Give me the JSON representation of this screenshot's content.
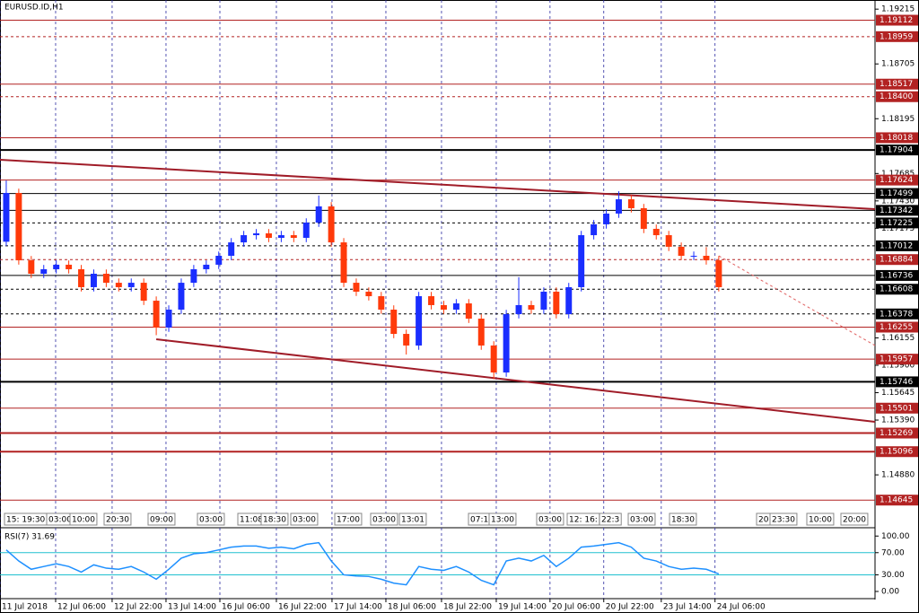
{
  "chart_data": [
    {
      "type": "candlestick",
      "title": "EURUSD.ID,H1",
      "bull_color": "#1a2eff",
      "bear_color": "#ff3a0a",
      "open": [
        1.1705,
        1.17504,
        1.16877,
        1.16752,
        1.16794,
        1.16836,
        1.16794,
        1.16627,
        1.16752,
        1.16668,
        1.16627,
        1.16668,
        1.16501,
        1.16251,
        1.16418,
        1.16668,
        1.16794,
        1.16836,
        1.16919,
        1.17044,
        1.17111,
        1.17128,
        1.17086,
        1.17111,
        1.17086,
        1.17228,
        1.17379,
        1.17044,
        1.16668,
        1.16585,
        1.16543,
        1.16418,
        1.16192,
        1.16084,
        1.16543,
        1.1646,
        1.16418,
        1.16476,
        1.16334,
        1.16084,
        1.15833,
        1.16376,
        1.1646,
        1.16418,
        1.16585,
        1.16376,
        1.16627,
        1.17111,
        1.17212,
        1.17312,
        1.17445,
        1.17362,
        1.1717,
        1.17111,
        1.17003,
        1.16919,
        1.16919,
        1.16877
      ],
      "high": [
        1.1762,
        1.17544,
        1.16917,
        1.16834,
        1.16876,
        1.16876,
        1.16834,
        1.16792,
        1.16792,
        1.16708,
        1.16708,
        1.16708,
        1.16541,
        1.16458,
        1.16708,
        1.16834,
        1.16876,
        1.16959,
        1.17084,
        1.17151,
        1.17168,
        1.17168,
        1.17151,
        1.17151,
        1.17268,
        1.1748,
        1.17419,
        1.17084,
        1.16708,
        1.16625,
        1.16583,
        1.16458,
        1.16232,
        1.16583,
        1.16583,
        1.165,
        1.16516,
        1.16516,
        1.16374,
        1.16124,
        1.16416,
        1.1672,
        1.165,
        1.16625,
        1.16625,
        1.16667,
        1.17151,
        1.17252,
        1.17352,
        1.1752,
        1.17485,
        1.17402,
        1.1721,
        1.17151,
        1.17043,
        1.16959,
        1.17,
        1.16917
      ],
      "low": [
        1.1701,
        1.16837,
        1.16712,
        1.16712,
        1.16754,
        1.16754,
        1.16587,
        1.16587,
        1.16628,
        1.16587,
        1.16587,
        1.16461,
        1.1618,
        1.16211,
        1.16378,
        1.16628,
        1.16754,
        1.16796,
        1.16879,
        1.17004,
        1.17071,
        1.17046,
        1.17046,
        1.17046,
        1.17046,
        1.17188,
        1.17004,
        1.16628,
        1.16545,
        1.16503,
        1.16378,
        1.16152,
        1.16,
        1.16044,
        1.1642,
        1.16378,
        1.16378,
        1.16294,
        1.16044,
        1.1577,
        1.15793,
        1.16336,
        1.16378,
        1.16378,
        1.16336,
        1.16336,
        1.16587,
        1.17071,
        1.17172,
        1.17272,
        1.17322,
        1.1713,
        1.17071,
        1.16963,
        1.16879,
        1.16879,
        1.16837,
        1.16587
      ],
      "close": [
        1.17504,
        1.16877,
        1.16752,
        1.16794,
        1.16836,
        1.16794,
        1.16627,
        1.16752,
        1.16668,
        1.16627,
        1.16668,
        1.16501,
        1.16251,
        1.16418,
        1.16668,
        1.16794,
        1.16836,
        1.16919,
        1.17044,
        1.17111,
        1.17128,
        1.17086,
        1.17111,
        1.17086,
        1.17228,
        1.17379,
        1.17044,
        1.16668,
        1.16585,
        1.16543,
        1.16418,
        1.16192,
        1.16084,
        1.16543,
        1.1646,
        1.16418,
        1.16476,
        1.16334,
        1.16084,
        1.15833,
        1.16376,
        1.1646,
        1.16418,
        1.16585,
        1.16376,
        1.16627,
        1.17111,
        1.17212,
        1.17312,
        1.17445,
        1.17362,
        1.1717,
        1.17111,
        1.17003,
        1.16919,
        1.16919,
        1.16877,
        1.16627
      ],
      "xlim": [
        0,
        70
      ],
      "xticks": [
        {
          "value": 0,
          "label": "11 Jul 2018"
        },
        {
          "value": 4.45,
          "label": "12 Jul 06:00"
        },
        {
          "value": 8.97,
          "label": "12 Jul 22:00"
        },
        {
          "value": 13.28,
          "label": "13 Jul 14:00"
        },
        {
          "value": 17.59,
          "label": "16 Jul 06:00"
        },
        {
          "value": 22.11,
          "label": "16 Jul 22:00"
        },
        {
          "value": 26.56,
          "label": "17 Jul 14:00"
        },
        {
          "value": 30.87,
          "label": "18 Jul 06:00"
        },
        {
          "value": 35.32,
          "label": "18 Jul 22:00"
        },
        {
          "value": 39.7,
          "label": "19 Jul 14:00"
        },
        {
          "value": 44,
          "label": "20 Jul 06:00"
        },
        {
          "value": 48.3,
          "label": "20 Jul 22:00"
        },
        {
          "value": 52.9,
          "label": "23 Jul 14:00"
        },
        {
          "value": 57.2,
          "label": "24 Jul 06:00"
        }
      ],
      "ylim": [
        1.1458,
        1.193
      ],
      "yticks": [
        1.19215,
        1.18705,
        1.18195,
        1.17685,
        {
          "value": 1.1743,
          "label": "1.17430"
        },
        1.17175,
        1.16155,
        {
          "value": 1.159,
          "label": "1.15900"
        },
        1.15645,
        {
          "value": 1.1539,
          "label": "1.15390"
        },
        {
          "value": 1.1488,
          "label": "1.14880"
        }
      ],
      "levels": [
        {
          "value": 1.19112,
          "label": "1.19112",
          "color": "#b22222",
          "style": "solid"
        },
        {
          "value": 1.18959,
          "label": "1.18959",
          "color": "#b22222",
          "style": "dashed"
        },
        {
          "value": 1.18517,
          "label": "1.18517",
          "color": "#b22222",
          "style": "solid"
        },
        {
          "value": 1.184,
          "label": "1.18400",
          "color": "#b22222",
          "style": "dashed"
        },
        {
          "value": 1.18018,
          "label": "1.18018",
          "color": "#b22222",
          "style": "solid"
        },
        {
          "value": 1.17904,
          "label": "1.17904",
          "color": "#000000",
          "style": "thick"
        },
        {
          "value": 1.17624,
          "label": "1.17624",
          "color": "#b22222",
          "style": "solid"
        },
        {
          "value": 1.17499,
          "label": "1.17499",
          "color": "#000000",
          "style": "solid"
        },
        {
          "value": 1.17342,
          "label": "1.17342",
          "color": "#000000",
          "style": "solid"
        },
        {
          "value": 1.17225,
          "label": "1.17225",
          "color": "#000000",
          "style": "dashed"
        },
        {
          "value": 1.17012,
          "label": "1.17012",
          "color": "#000000",
          "style": "dashed"
        },
        {
          "value": 1.16884,
          "label": "1.16884",
          "color": "#b22222",
          "style": "dashed"
        },
        {
          "value": 1.16736,
          "label": "1.16736",
          "color": "#000000",
          "style": "solid"
        },
        {
          "value": 1.16608,
          "label": "1.16608",
          "color": "#000000",
          "style": "dashed"
        },
        {
          "value": 1.16378,
          "label": "1.16378",
          "color": "#000000",
          "style": "dashed"
        },
        {
          "value": 1.16255,
          "label": "1.16255",
          "color": "#b22222",
          "style": "solid"
        },
        {
          "value": 1.15957,
          "label": "1.15957",
          "color": "#b22222",
          "style": "solid"
        },
        {
          "value": 1.15746,
          "label": "1.15746",
          "color": "#000000",
          "style": "thick"
        },
        {
          "value": 1.15501,
          "label": "1.15501",
          "color": "#b22222",
          "style": "solid"
        },
        {
          "value": 1.15269,
          "label": "1.15269",
          "color": "#b22222",
          "style": "thick"
        },
        {
          "value": 1.15096,
          "label": "1.15096",
          "color": "#b22222",
          "style": "thick"
        },
        {
          "value": 1.14645,
          "label": "1.14645",
          "color": "#b22222",
          "style": "solid"
        }
      ],
      "trendlines": [
        {
          "start": [
            0,
            1.17813
          ],
          "end": [
            70,
            1.17354
          ],
          "color": "#a01c28",
          "style": "thick"
        },
        {
          "start": [
            12.5,
            1.16142
          ],
          "end": [
            70,
            1.15374
          ],
          "color": "#a01c28",
          "style": "thick"
        },
        {
          "start": [
            57.5,
            1.16919
          ],
          "end": [
            70,
            1.16084
          ],
          "color": "#e06060",
          "style": "dashed"
        }
      ],
      "time_strip": [
        "15: 19:30",
        "03:00",
        "10:00",
        "20:30",
        "09:00",
        "03:00",
        "11:08",
        "18:30",
        "03:00",
        "17:00",
        "03:00",
        "13:01",
        "07:1",
        "13:00",
        "03:00",
        "12: 16:",
        "22:3",
        "03:00",
        "18:30",
        "20",
        "23:30",
        "10:00",
        "20:00"
      ]
    },
    {
      "type": "line",
      "title": "RSI(7) 31.69",
      "color": "#1e90ff",
      "level_color": "#20c0d0",
      "values": [
        75,
        55,
        40,
        45,
        50,
        45,
        35,
        48,
        42,
        40,
        45,
        35,
        22,
        40,
        60,
        68,
        70,
        75,
        80,
        82,
        82,
        78,
        80,
        77,
        85,
        88,
        55,
        30,
        28,
        27,
        22,
        15,
        12,
        45,
        40,
        38,
        45,
        35,
        20,
        12,
        55,
        60,
        55,
        65,
        45,
        60,
        80,
        82,
        85,
        88,
        80,
        60,
        55,
        45,
        40,
        42,
        40,
        31.69
      ],
      "ylim": [
        -13,
        115
      ],
      "yticks": [
        {
          "value": 100,
          "label": "100.00"
        },
        {
          "value": 70,
          "label": "70.00"
        },
        {
          "value": 30,
          "label": "30.00"
        },
        {
          "value": 0,
          "label": "0.00"
        }
      ],
      "levels": [
        70,
        30
      ]
    }
  ]
}
